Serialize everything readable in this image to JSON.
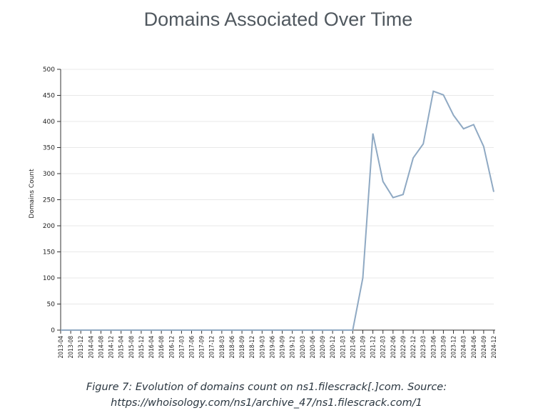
{
  "chart_data": {
    "type": "line",
    "title": "Domains Associated Over Time",
    "xlabel": "",
    "ylabel": "Domains Count",
    "ylim": [
      0,
      500
    ],
    "y_ticks": [
      0,
      50,
      100,
      150,
      200,
      250,
      300,
      350,
      400,
      450,
      500
    ],
    "grid": true,
    "legend": "none",
    "line_color": "#8fa9c3",
    "x_labels": [
      "2013-04",
      "2013-08",
      "2013-12",
      "2014-04",
      "2014-08",
      "2014-12",
      "2015-04",
      "2015-08",
      "2015-12",
      "2016-04",
      "2016-08",
      "2016-12",
      "2017-03",
      "2017-06",
      "2017-09",
      "2017-12",
      "2018-03",
      "2018-06",
      "2018-09",
      "2018-12",
      "2019-03",
      "2019-06",
      "2019-09",
      "2019-12",
      "2020-03",
      "2020-06",
      "2020-09",
      "2020-12",
      "2021-03",
      "2021-06",
      "2021-09",
      "2021-12",
      "2022-03",
      "2022-06",
      "2022-09",
      "2022-12",
      "2023-03",
      "2023-06",
      "2023-09",
      "2023-12",
      "2024-03",
      "2024-06",
      "2024-09",
      "2024-12"
    ],
    "series": [
      {
        "values": [
          0,
          0,
          0,
          0,
          0,
          0,
          0,
          0,
          0,
          0,
          0,
          0,
          0,
          0,
          0,
          0,
          0,
          0,
          0,
          0,
          0,
          0,
          0,
          0,
          0,
          0,
          0,
          0,
          0,
          0,
          100,
          377,
          285,
          254,
          260,
          330,
          357,
          458,
          451,
          412,
          386,
          394,
          352,
          265
        ]
      }
    ]
  },
  "caption": {
    "line1": "Figure 7: Evolution of domains count on ns1.filescrack[.]com. Source:",
    "line2": "https://whoisology.com/ns1/archive_47/ns1.filescrack.com/1"
  }
}
